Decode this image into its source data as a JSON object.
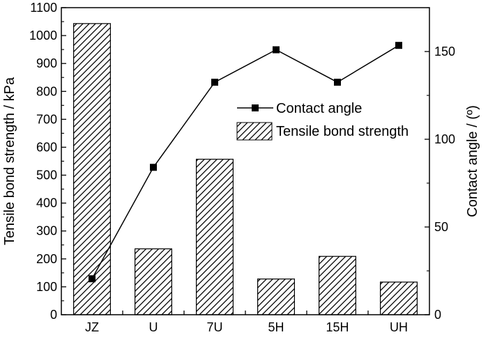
{
  "chart_data": {
    "type": "bar",
    "categories": [
      "JZ",
      "U",
      "7U",
      "5H",
      "15H",
      "UH"
    ],
    "series": [
      {
        "name": "Tensile bond strength",
        "type": "bar",
        "axis": "left",
        "values": [
          1043,
          236,
          557,
          128,
          209,
          117
        ]
      },
      {
        "name": "Contact angle",
        "type": "line",
        "axis": "right",
        "values": [
          20.5,
          84,
          132.5,
          151,
          132.5,
          153.5
        ]
      }
    ],
    "ylabel": "Tensile bond strength / kPa",
    "ylabel_right": "Contact angle / (º)",
    "ylim": [
      0,
      1100
    ],
    "ylim_right": [
      0,
      175
    ],
    "yticks": [
      "0",
      "100",
      "200",
      "300",
      "400",
      "500",
      "600",
      "700",
      "800",
      "900",
      "1000",
      "1100"
    ],
    "yticks_right": [
      "0",
      "50",
      "100",
      "150"
    ],
    "legend": {
      "placement": "upper-right-inside",
      "entries": [
        "Contact angle",
        "Tensile bond strength"
      ]
    },
    "bar_pattern": "diagonal-hatch",
    "bar_color": "#000000",
    "line_color": "#000000",
    "marker": "square",
    "grid": false
  }
}
